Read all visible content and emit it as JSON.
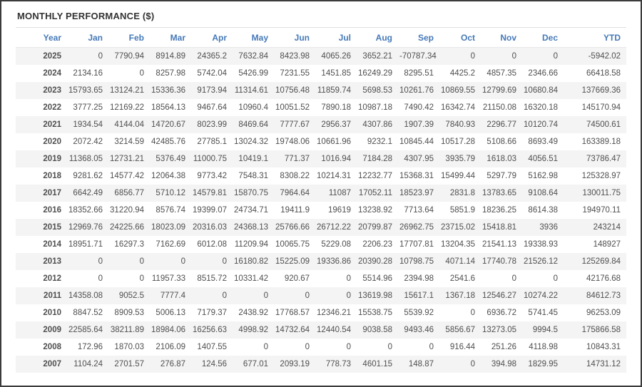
{
  "header": {
    "title": "MONTHLY PERFORMANCE ($)"
  },
  "colors": {
    "header_text": "#4579b8",
    "negative": "#e9564d",
    "stripe": "#f4f4f4"
  },
  "table": {
    "columns": [
      "Year",
      "Jan",
      "Feb",
      "Mar",
      "Apr",
      "May",
      "Jun",
      "Jul",
      "Aug",
      "Sep",
      "Oct",
      "Nov",
      "Dec",
      "YTD"
    ],
    "rows": [
      {
        "year": "2025",
        "values": [
          "0",
          "7790.94",
          "8914.89",
          "24365.2",
          "7632.84",
          "8423.98",
          "4065.26",
          "3652.21",
          "-70787.34",
          "0",
          "0",
          "0",
          "-5942.02"
        ]
      },
      {
        "year": "2024",
        "values": [
          "2134.16",
          "0",
          "8257.98",
          "5742.04",
          "5426.99",
          "7231.55",
          "1451.85",
          "16249.29",
          "8295.51",
          "4425.2",
          "4857.35",
          "2346.66",
          "66418.58"
        ]
      },
      {
        "year": "2023",
        "values": [
          "15793.65",
          "13124.21",
          "15336.36",
          "9173.94",
          "11314.61",
          "10756.48",
          "11859.74",
          "5698.53",
          "10261.76",
          "10869.55",
          "12799.69",
          "10680.84",
          "137669.36"
        ]
      },
      {
        "year": "2022",
        "values": [
          "3777.25",
          "12169.22",
          "18564.13",
          "9467.64",
          "10960.4",
          "10051.52",
          "7890.18",
          "10987.18",
          "7490.42",
          "16342.74",
          "21150.08",
          "16320.18",
          "145170.94"
        ]
      },
      {
        "year": "2021",
        "values": [
          "1934.54",
          "4144.04",
          "14720.67",
          "8023.99",
          "8469.64",
          "7777.67",
          "2956.37",
          "4307.86",
          "1907.39",
          "7840.93",
          "2296.77",
          "10120.74",
          "74500.61"
        ]
      },
      {
        "year": "2020",
        "values": [
          "2072.42",
          "3214.59",
          "42485.76",
          "27785.1",
          "13024.32",
          "19748.06",
          "10661.96",
          "9232.1",
          "10845.44",
          "10517.28",
          "5108.66",
          "8693.49",
          "163389.18"
        ]
      },
      {
        "year": "2019",
        "values": [
          "11368.05",
          "12731.21",
          "5376.49",
          "11000.75",
          "10419.1",
          "771.37",
          "1016.94",
          "7184.28",
          "4307.95",
          "3935.79",
          "1618.03",
          "4056.51",
          "73786.47"
        ]
      },
      {
        "year": "2018",
        "values": [
          "9281.62",
          "14577.42",
          "12064.38",
          "9773.42",
          "7548.31",
          "8308.22",
          "10214.31",
          "12232.77",
          "15368.31",
          "15499.44",
          "5297.79",
          "5162.98",
          "125328.97"
        ]
      },
      {
        "year": "2017",
        "values": [
          "6642.49",
          "6856.77",
          "5710.12",
          "14579.81",
          "15870.75",
          "7964.64",
          "11087",
          "17052.11",
          "18523.97",
          "2831.8",
          "13783.65",
          "9108.64",
          "130011.75"
        ]
      },
      {
        "year": "2016",
        "values": [
          "18352.66",
          "31220.94",
          "8576.74",
          "19399.07",
          "24734.71",
          "19411.9",
          "19619",
          "13238.92",
          "7713.64",
          "5851.9",
          "18236.25",
          "8614.38",
          "194970.11"
        ]
      },
      {
        "year": "2015",
        "values": [
          "12969.76",
          "24225.66",
          "18023.09",
          "20316.03",
          "24368.13",
          "25766.66",
          "26712.22",
          "20799.87",
          "26962.75",
          "23715.02",
          "15418.81",
          "3936",
          "243214"
        ]
      },
      {
        "year": "2014",
        "values": [
          "18951.71",
          "16297.3",
          "7162.69",
          "6012.08",
          "11209.94",
          "10065.75",
          "5229.08",
          "2206.23",
          "17707.81",
          "13204.35",
          "21541.13",
          "19338.93",
          "148927"
        ]
      },
      {
        "year": "2013",
        "values": [
          "0",
          "0",
          "0",
          "0",
          "16180.82",
          "15225.09",
          "19336.86",
          "20390.28",
          "10798.75",
          "4071.14",
          "17740.78",
          "21526.12",
          "125269.84"
        ]
      },
      {
        "year": "2012",
        "values": [
          "0",
          "0",
          "11957.33",
          "8515.72",
          "10331.42",
          "920.67",
          "0",
          "5514.96",
          "2394.98",
          "2541.6",
          "0",
          "0",
          "42176.68"
        ]
      },
      {
        "year": "2011",
        "values": [
          "14358.08",
          "9052.5",
          "7777.4",
          "0",
          "0",
          "0",
          "0",
          "13619.98",
          "15617.1",
          "1367.18",
          "12546.27",
          "10274.22",
          "84612.73"
        ]
      },
      {
        "year": "2010",
        "values": [
          "8847.52",
          "8909.53",
          "5006.13",
          "7179.37",
          "2438.92",
          "17768.57",
          "12346.21",
          "15538.75",
          "5539.92",
          "0",
          "6936.72",
          "5741.45",
          "96253.09"
        ]
      },
      {
        "year": "2009",
        "values": [
          "22585.64",
          "38211.89",
          "18984.06",
          "16256.63",
          "4998.92",
          "14732.64",
          "12440.54",
          "9038.58",
          "9493.46",
          "5856.67",
          "13273.05",
          "9994.5",
          "175866.58"
        ]
      },
      {
        "year": "2008",
        "values": [
          "172.96",
          "1870.03",
          "2106.09",
          "1407.55",
          "0",
          "0",
          "0",
          "0",
          "0",
          "916.44",
          "251.26",
          "4118.98",
          "10843.31"
        ]
      },
      {
        "year": "2007",
        "values": [
          "1104.24",
          "2701.57",
          "276.87",
          "124.56",
          "677.01",
          "2093.19",
          "778.73",
          "4601.15",
          "148.87",
          "0",
          "394.98",
          "1829.95",
          "14731.12"
        ]
      }
    ]
  }
}
